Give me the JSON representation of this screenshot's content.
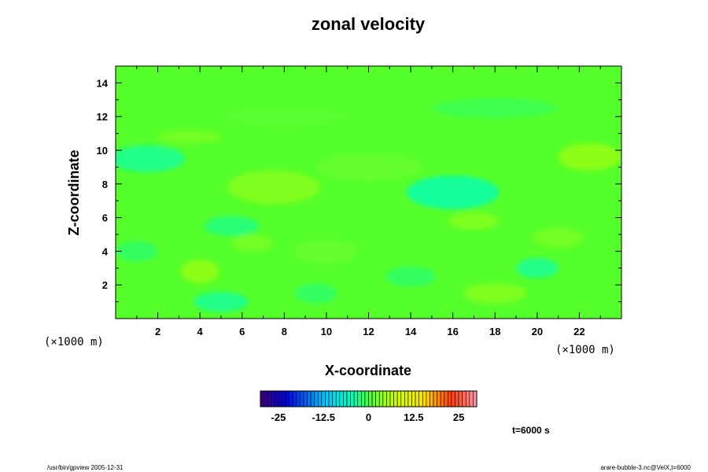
{
  "chart_data": {
    "type": "heatmap",
    "title": "zonal velocity",
    "xlabel": "X-coordinate",
    "ylabel": "Z-coordinate",
    "x_unit": "(×1000 m)",
    "y_unit": "(×1000 m)",
    "xlim": [
      0,
      24
    ],
    "ylim": [
      0,
      15
    ],
    "xticks": [
      "2",
      "4",
      "6",
      "8",
      "10",
      "12",
      "14",
      "16",
      "18",
      "20",
      "22"
    ],
    "yticks": [
      "2",
      "4",
      "6",
      "8",
      "10",
      "12",
      "14"
    ],
    "colorbar": {
      "min": -30,
      "max": 30,
      "ticks": [
        "-25",
        "-12.5",
        "0",
        "12.5",
        "25"
      ],
      "tick_values": [
        -25,
        -12.5,
        0,
        12.5,
        25
      ]
    },
    "blobs": [
      {
        "x": 1.5,
        "z": 9.5,
        "v": -4,
        "rx": 1.8,
        "rz": 0.8
      },
      {
        "x": 7.5,
        "z": 7.8,
        "v": 4,
        "rx": 2.2,
        "rz": 1.0
      },
      {
        "x": 4,
        "z": 2.8,
        "v": 5,
        "rx": 0.9,
        "rz": 0.7
      },
      {
        "x": 6.5,
        "z": 4.5,
        "v": 3,
        "rx": 1.0,
        "rz": 0.5
      },
      {
        "x": 5.5,
        "z": 5.5,
        "v": -3,
        "rx": 1.3,
        "rz": 0.6
      },
      {
        "x": 5.0,
        "z": 1.0,
        "v": -4,
        "rx": 1.3,
        "rz": 0.6
      },
      {
        "x": 9.5,
        "z": 1.5,
        "v": -2,
        "rx": 1.0,
        "rz": 0.6
      },
      {
        "x": 16,
        "z": 7.5,
        "v": -5,
        "rx": 2.2,
        "rz": 1.0
      },
      {
        "x": 17,
        "z": 5.8,
        "v": 4,
        "rx": 1.2,
        "rz": 0.5
      },
      {
        "x": 22.5,
        "z": 9.6,
        "v": 5,
        "rx": 1.5,
        "rz": 0.8
      },
      {
        "x": 20,
        "z": 3.0,
        "v": -4,
        "rx": 1.0,
        "rz": 0.6
      },
      {
        "x": 21,
        "z": 4.8,
        "v": 3,
        "rx": 1.2,
        "rz": 0.6
      },
      {
        "x": 18,
        "z": 1.5,
        "v": 4,
        "rx": 1.5,
        "rz": 0.6
      },
      {
        "x": 3.5,
        "z": 10.8,
        "v": 3,
        "rx": 1.5,
        "rz": 0.4
      },
      {
        "x": 12,
        "z": 9.0,
        "v": 2,
        "rx": 2.5,
        "rz": 0.8
      },
      {
        "x": 10,
        "z": 4.0,
        "v": 2,
        "rx": 1.5,
        "rz": 0.7
      },
      {
        "x": 1.0,
        "z": 4.0,
        "v": -2,
        "rx": 1.0,
        "rz": 0.6
      },
      {
        "x": 14,
        "z": 2.5,
        "v": -2,
        "rx": 1.2,
        "rz": 0.6
      },
      {
        "x": 8,
        "z": 12.0,
        "v": 1,
        "rx": 3.0,
        "rz": 0.5
      },
      {
        "x": 18,
        "z": 12.5,
        "v": -1,
        "rx": 3.0,
        "rz": 0.6
      }
    ]
  },
  "annotations": {
    "time": "t=6000 s",
    "footer_left": "/usr/bin/gpview 2005-12-31",
    "footer_right": "arare-bubble-3.nc@VelX,t=6000"
  }
}
